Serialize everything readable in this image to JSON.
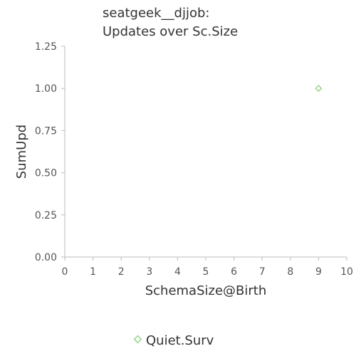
{
  "chart_data": {
    "type": "scatter",
    "title_lines": [
      "seatgeek__djjob:",
      "Updates over Sc.Size"
    ],
    "xlabel": "SchemaSize@Birth",
    "ylabel": "SumUpd",
    "xlim": [
      0,
      10
    ],
    "ylim": [
      0,
      1.25
    ],
    "x_ticks": [
      "0",
      "1",
      "2",
      "3",
      "4",
      "5",
      "6",
      "7",
      "8",
      "9",
      "10"
    ],
    "y_ticks": [
      "0.00",
      "0.25",
      "0.50",
      "0.75",
      "1.00",
      "1.25"
    ],
    "grid": false,
    "legend_position": "bottom-center",
    "series": [
      {
        "name": "Quiet.Surv",
        "color": "#99d68a",
        "marker": "diamond-open",
        "points": [
          {
            "x": 9,
            "y": 1.0
          }
        ]
      }
    ]
  }
}
